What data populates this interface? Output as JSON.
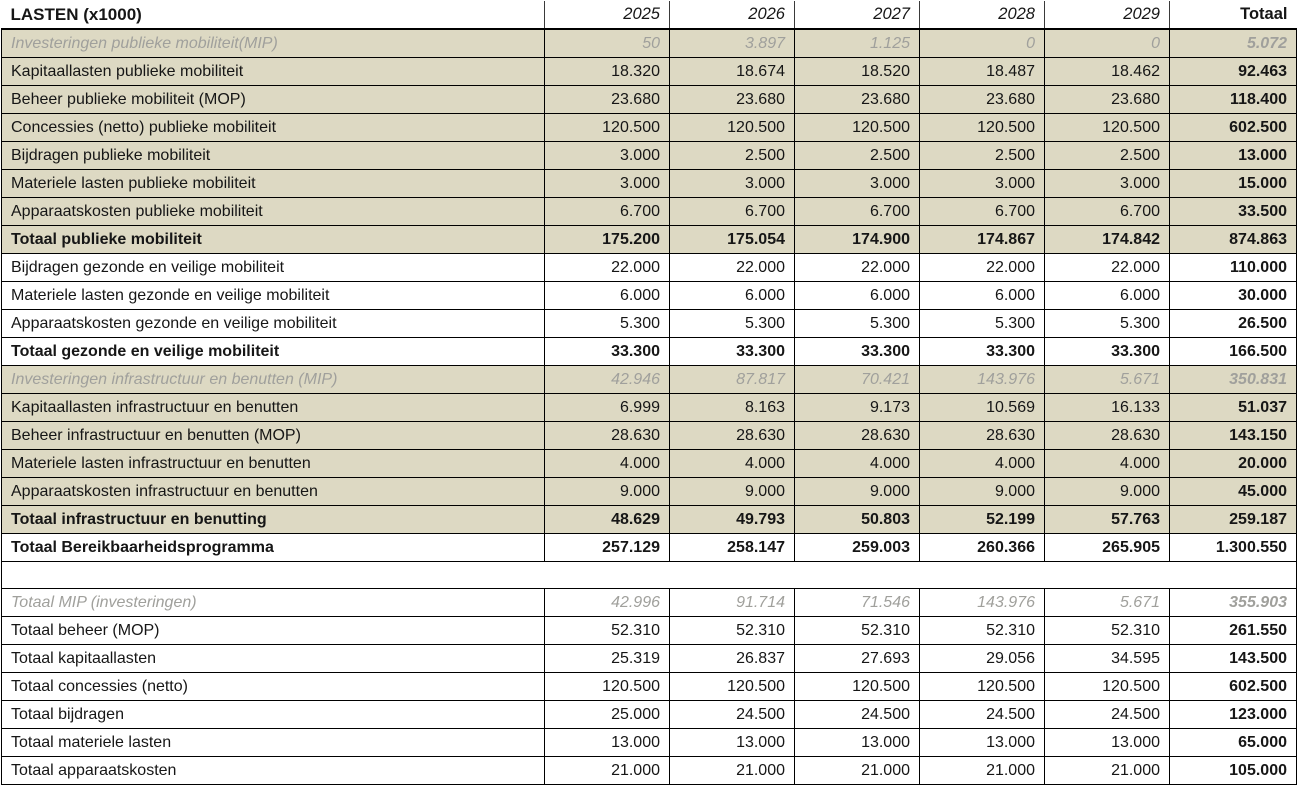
{
  "colors": {
    "section_bg_tan": "#ddd9c3",
    "muted_row_text": "#a0a09c",
    "grid_border": "#000000",
    "text": "#161616"
  },
  "header": {
    "title": "LASTEN (x1000)",
    "columns": [
      "2025",
      "2026",
      "2027",
      "2028",
      "2029",
      "Totaal"
    ]
  },
  "rows": [
    {
      "type": "data",
      "style": "mip",
      "bg": "tan",
      "label": "Investeringen publieke mobiliteit(MIP)",
      "values": [
        "50",
        "3.897",
        "1.125",
        "0",
        "0",
        "5.072"
      ]
    },
    {
      "type": "data",
      "style": "normal",
      "bg": "tan",
      "label": "Kapitaallasten publieke mobiliteit",
      "values": [
        "18.320",
        "18.674",
        "18.520",
        "18.487",
        "18.462",
        "92.463"
      ]
    },
    {
      "type": "data",
      "style": "normal",
      "bg": "tan",
      "label": "Beheer publieke mobiliteit (MOP)",
      "values": [
        "23.680",
        "23.680",
        "23.680",
        "23.680",
        "23.680",
        "118.400"
      ]
    },
    {
      "type": "data",
      "style": "normal",
      "bg": "tan",
      "label": "Concessies (netto) publieke mobiliteit",
      "values": [
        "120.500",
        "120.500",
        "120.500",
        "120.500",
        "120.500",
        "602.500"
      ]
    },
    {
      "type": "data",
      "style": "normal",
      "bg": "tan",
      "label": "Bijdragen publieke mobiliteit",
      "values": [
        "3.000",
        "2.500",
        "2.500",
        "2.500",
        "2.500",
        "13.000"
      ]
    },
    {
      "type": "data",
      "style": "normal",
      "bg": "tan",
      "label": "Materiele lasten publieke mobiliteit",
      "values": [
        "3.000",
        "3.000",
        "3.000",
        "3.000",
        "3.000",
        "15.000"
      ]
    },
    {
      "type": "data",
      "style": "normal",
      "bg": "tan",
      "label": "Apparaatskosten publieke mobiliteit",
      "values": [
        "6.700",
        "6.700",
        "6.700",
        "6.700",
        "6.700",
        "33.500"
      ]
    },
    {
      "type": "data",
      "style": "subtotal",
      "bg": "tan",
      "label": "Totaal publieke mobiliteit",
      "values": [
        "175.200",
        "175.054",
        "174.900",
        "174.867",
        "174.842",
        "874.863"
      ]
    },
    {
      "type": "data",
      "style": "normal",
      "bg": "white",
      "label": "Bijdragen gezonde en veilige mobiliteit",
      "values": [
        "22.000",
        "22.000",
        "22.000",
        "22.000",
        "22.000",
        "110.000"
      ]
    },
    {
      "type": "data",
      "style": "normal",
      "bg": "white",
      "label": "Materiele lasten gezonde en veilige mobiliteit",
      "values": [
        "6.000",
        "6.000",
        "6.000",
        "6.000",
        "6.000",
        "30.000"
      ]
    },
    {
      "type": "data",
      "style": "normal",
      "bg": "white",
      "label": "Apparaatskosten gezonde en veilige mobiliteit",
      "values": [
        "5.300",
        "5.300",
        "5.300",
        "5.300",
        "5.300",
        "26.500"
      ]
    },
    {
      "type": "data",
      "style": "subtotal",
      "bg": "white",
      "label": "Totaal gezonde en veilige mobiliteit",
      "values": [
        "33.300",
        "33.300",
        "33.300",
        "33.300",
        "33.300",
        "166.500"
      ]
    },
    {
      "type": "data",
      "style": "mip",
      "bg": "tan",
      "label": "Investeringen infrastructuur en benutten (MIP)",
      "values": [
        "42.946",
        "87.817",
        "70.421",
        "143.976",
        "5.671",
        "350.831"
      ]
    },
    {
      "type": "data",
      "style": "normal",
      "bg": "tan",
      "label": "Kapitaallasten infrastructuur en benutten",
      "values": [
        "6.999",
        "8.163",
        "9.173",
        "10.569",
        "16.133",
        "51.037"
      ]
    },
    {
      "type": "data",
      "style": "normal",
      "bg": "tan",
      "label": "Beheer infrastructuur en benutten (MOP)",
      "values": [
        "28.630",
        "28.630",
        "28.630",
        "28.630",
        "28.630",
        "143.150"
      ]
    },
    {
      "type": "data",
      "style": "normal",
      "bg": "tan",
      "label": "Materiele lasten infrastructuur en benutten",
      "values": [
        "4.000",
        "4.000",
        "4.000",
        "4.000",
        "4.000",
        "20.000"
      ]
    },
    {
      "type": "data",
      "style": "normal",
      "bg": "tan",
      "label": "Apparaatskosten infrastructuur en benutten",
      "values": [
        "9.000",
        "9.000",
        "9.000",
        "9.000",
        "9.000",
        "45.000"
      ]
    },
    {
      "type": "data",
      "style": "subtotal",
      "bg": "tan",
      "label": "Totaal infrastructuur en benutting",
      "values": [
        "48.629",
        "49.793",
        "50.803",
        "52.199",
        "57.763",
        "259.187"
      ]
    },
    {
      "type": "data",
      "style": "subtotal",
      "bg": "white",
      "label": "Totaal Bereikbaarheidsprogramma",
      "values": [
        "257.129",
        "258.147",
        "259.003",
        "260.366",
        "265.905",
        "1.300.550"
      ]
    },
    {
      "type": "separator"
    },
    {
      "type": "data",
      "style": "mip",
      "bg": "white",
      "label": "Totaal MIP (investeringen)",
      "values": [
        "42.996",
        "91.714",
        "71.546",
        "143.976",
        "5.671",
        "355.903"
      ]
    },
    {
      "type": "data",
      "style": "normal",
      "bg": "white",
      "label": "Totaal beheer (MOP)",
      "values": [
        "52.310",
        "52.310",
        "52.310",
        "52.310",
        "52.310",
        "261.550"
      ]
    },
    {
      "type": "data",
      "style": "normal",
      "bg": "white",
      "label": "Totaal kapitaallasten",
      "values": [
        "25.319",
        "26.837",
        "27.693",
        "29.056",
        "34.595",
        "143.500"
      ]
    },
    {
      "type": "data",
      "style": "normal",
      "bg": "white",
      "label": "Totaal concessies (netto)",
      "values": [
        "120.500",
        "120.500",
        "120.500",
        "120.500",
        "120.500",
        "602.500"
      ]
    },
    {
      "type": "data",
      "style": "normal",
      "bg": "white",
      "label": "Totaal bijdragen",
      "values": [
        "25.000",
        "24.500",
        "24.500",
        "24.500",
        "24.500",
        "123.000"
      ]
    },
    {
      "type": "data",
      "style": "normal",
      "bg": "white",
      "label": "Totaal materiele lasten",
      "values": [
        "13.000",
        "13.000",
        "13.000",
        "13.000",
        "13.000",
        "65.000"
      ]
    },
    {
      "type": "data",
      "style": "normal",
      "bg": "white",
      "label": "Totaal apparaatskosten",
      "values": [
        "21.000",
        "21.000",
        "21.000",
        "21.000",
        "21.000",
        "105.000"
      ]
    }
  ]
}
